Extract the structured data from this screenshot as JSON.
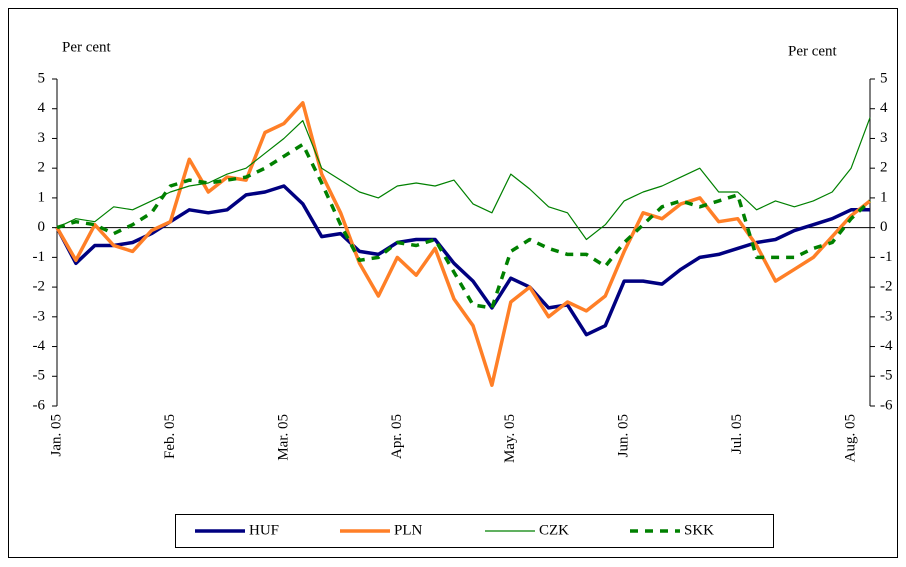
{
  "chart_data": {
    "type": "line",
    "ylabel": "Per cent",
    "y2label": "Per cent",
    "categories": [
      "Jan. 05",
      null,
      null,
      null,
      null,
      null,
      "Feb. 05",
      null,
      null,
      null,
      null,
      null,
      "Mar. 05",
      null,
      null,
      null,
      null,
      null,
      "Apr. 05",
      null,
      null,
      null,
      null,
      null,
      "May. 05",
      null,
      null,
      null,
      null,
      null,
      "Jun. 05",
      null,
      null,
      null,
      null,
      null,
      "Jul. 05",
      null,
      null,
      null,
      null,
      null,
      "Aug. 05",
      null
    ],
    "series": [
      {
        "name": "HUF",
        "color": "#000080",
        "width": 3.5,
        "dashed": false,
        "values": [
          0,
          -1.2,
          -0.6,
          -0.6,
          -0.5,
          -0.2,
          0.2,
          0.6,
          0.5,
          0.6,
          1.1,
          1.2,
          1.4,
          0.8,
          -0.3,
          -0.2,
          -0.8,
          -0.9,
          -0.5,
          -0.4,
          -0.4,
          -1.2,
          -1.8,
          -2.7,
          -1.7,
          -2.0,
          -2.7,
          -2.6,
          -3.6,
          -3.3,
          -1.8,
          -1.8,
          -1.9,
          -1.4,
          -1.0,
          -0.9,
          -0.7,
          -0.5,
          -0.4,
          -0.1,
          0.1,
          0.3,
          0.6,
          0.6
        ]
      },
      {
        "name": "PLN",
        "color": "#ff7f27",
        "width": 3.5,
        "dashed": false,
        "values": [
          0,
          -1.1,
          0.1,
          -0.6,
          -0.8,
          -0.1,
          0.2,
          2.3,
          1.2,
          1.7,
          1.6,
          3.2,
          3.5,
          4.2,
          1.8,
          0.5,
          -1.2,
          -2.3,
          -1.0,
          -1.6,
          -0.7,
          -2.4,
          -3.3,
          -5.3,
          -2.5,
          -2.0,
          -3.0,
          -2.5,
          -2.8,
          -2.3,
          -0.8,
          0.5,
          0.3,
          0.8,
          1.0,
          0.2,
          0.3,
          -0.6,
          -1.8,
          -1.4,
          -1.0,
          -0.3,
          0.4,
          0.9
        ]
      },
      {
        "name": "CZK",
        "color": "#008000",
        "width": 1.2,
        "dashed": false,
        "values": [
          0,
          0.3,
          0.2,
          0.7,
          0.6,
          0.9,
          1.2,
          1.4,
          1.5,
          1.8,
          2.0,
          2.5,
          3.0,
          3.6,
          2.0,
          1.6,
          1.2,
          1.0,
          1.4,
          1.5,
          1.4,
          1.6,
          0.8,
          0.5,
          1.8,
          1.3,
          0.7,
          0.5,
          -0.4,
          0.1,
          0.9,
          1.2,
          1.4,
          1.7,
          2.0,
          1.2,
          1.2,
          0.6,
          0.9,
          0.7,
          0.9,
          1.2,
          2.0,
          3.7
        ]
      },
      {
        "name": "SKK",
        "color": "#008000",
        "width": 3.5,
        "dashed": true,
        "values": [
          0,
          0.2,
          0.1,
          -0.2,
          0.1,
          0.5,
          1.4,
          1.6,
          1.5,
          1.6,
          1.7,
          2.0,
          2.4,
          2.8,
          1.5,
          0.1,
          -1.1,
          -1.0,
          -0.5,
          -0.6,
          -0.4,
          -1.5,
          -2.6,
          -2.7,
          -0.8,
          -0.4,
          -0.7,
          -0.9,
          -0.9,
          -1.3,
          -0.5,
          0.1,
          0.7,
          0.9,
          0.7,
          0.9,
          1.1,
          -1.0,
          -1.0,
          -1.0,
          -0.7,
          -0.5,
          0.3,
          0.9
        ]
      }
    ],
    "ylim": [
      -6,
      5
    ],
    "yticks": [
      -6,
      -5,
      -4,
      -3,
      -2,
      -1,
      0,
      1,
      2,
      3,
      4,
      5
    ],
    "y2lim": [
      -6,
      5
    ],
    "y2ticks": [
      -6,
      -5,
      -4,
      -3,
      -2,
      -1,
      0,
      1,
      2,
      3,
      4,
      5
    ],
    "legend": "bottom"
  }
}
